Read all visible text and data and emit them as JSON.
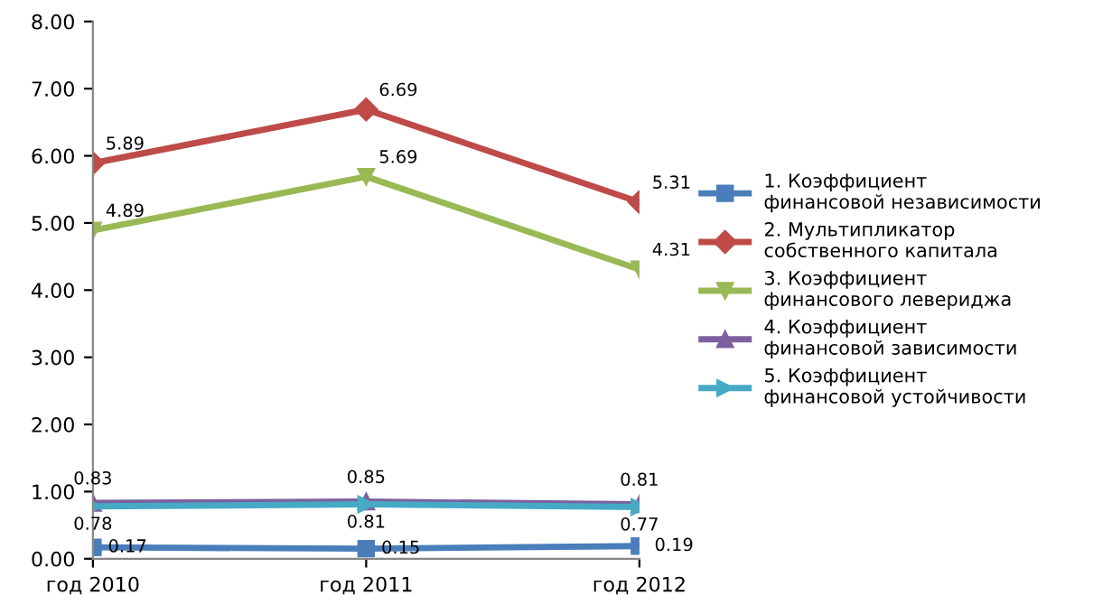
{
  "chart_data": {
    "type": "line",
    "categories": [
      "год 2010",
      "год 2011",
      "год 2012"
    ],
    "series": [
      {
        "name": "1. Коэффициент финансовой независимости",
        "color": "#4a7ebb",
        "marker": "square",
        "values": [
          0.17,
          0.15,
          0.19
        ]
      },
      {
        "name": "2. Мультипликатор собственного капитала",
        "color": "#be4b48",
        "marker": "diamond",
        "values": [
          5.89,
          6.69,
          5.31
        ]
      },
      {
        "name": "3. Коэффициент финансового левериджа",
        "color": "#98b954",
        "marker": "triangle",
        "values": [
          4.89,
          5.69,
          4.31
        ]
      },
      {
        "name": "4. Коэффициент финансовой зависимости",
        "color": "#7d60a0",
        "marker": "triangle",
        "values": [
          0.83,
          0.85,
          0.81
        ]
      },
      {
        "name": "5. Коэффициент финансовой устойчивости",
        "color": "#46aac5",
        "marker": "triangle",
        "values": [
          0.78,
          0.81,
          0.77
        ]
      }
    ],
    "ylim": [
      0,
      8
    ],
    "yticks": [
      {
        "value": 0,
        "label": "0.00"
      },
      {
        "value": 1,
        "label": "1.00"
      },
      {
        "value": 2,
        "label": "2.00"
      },
      {
        "value": 3,
        "label": "3.00"
      },
      {
        "value": 4,
        "label": "4.00"
      },
      {
        "value": 5,
        "label": "5.00"
      },
      {
        "value": 6,
        "label": "6.00"
      },
      {
        "value": 7,
        "label": "7.00"
      },
      {
        "value": 8,
        "label": "8.00"
      }
    ],
    "data_labels": true,
    "legend": "right",
    "grid": false,
    "line_style": "solid"
  }
}
